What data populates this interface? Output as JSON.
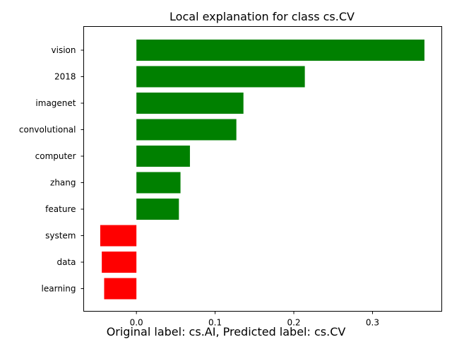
{
  "chart_data": {
    "type": "bar",
    "orientation": "horizontal",
    "title": "Local explanation for class cs.CV",
    "caption": "Original label: cs.AI, Predicted label: cs.CV",
    "xlabel": "",
    "ylabel": "",
    "categories": [
      "vision",
      "2018",
      "imagenet",
      "convolutional",
      "computer",
      "zhang",
      "feature",
      "system",
      "data",
      "learning"
    ],
    "values": [
      0.366,
      0.214,
      0.136,
      0.127,
      0.068,
      0.056,
      0.054,
      -0.046,
      -0.044,
      -0.041
    ],
    "xlim": [
      -0.067,
      0.388
    ],
    "xticks": [
      0.0,
      0.1,
      0.2,
      0.3
    ],
    "xtick_labels": [
      "0.0",
      "0.1",
      "0.2",
      "0.3"
    ],
    "grid": false,
    "colors": {
      "positive": "#008000",
      "negative": "#ff0000",
      "axis": "#000000"
    }
  }
}
